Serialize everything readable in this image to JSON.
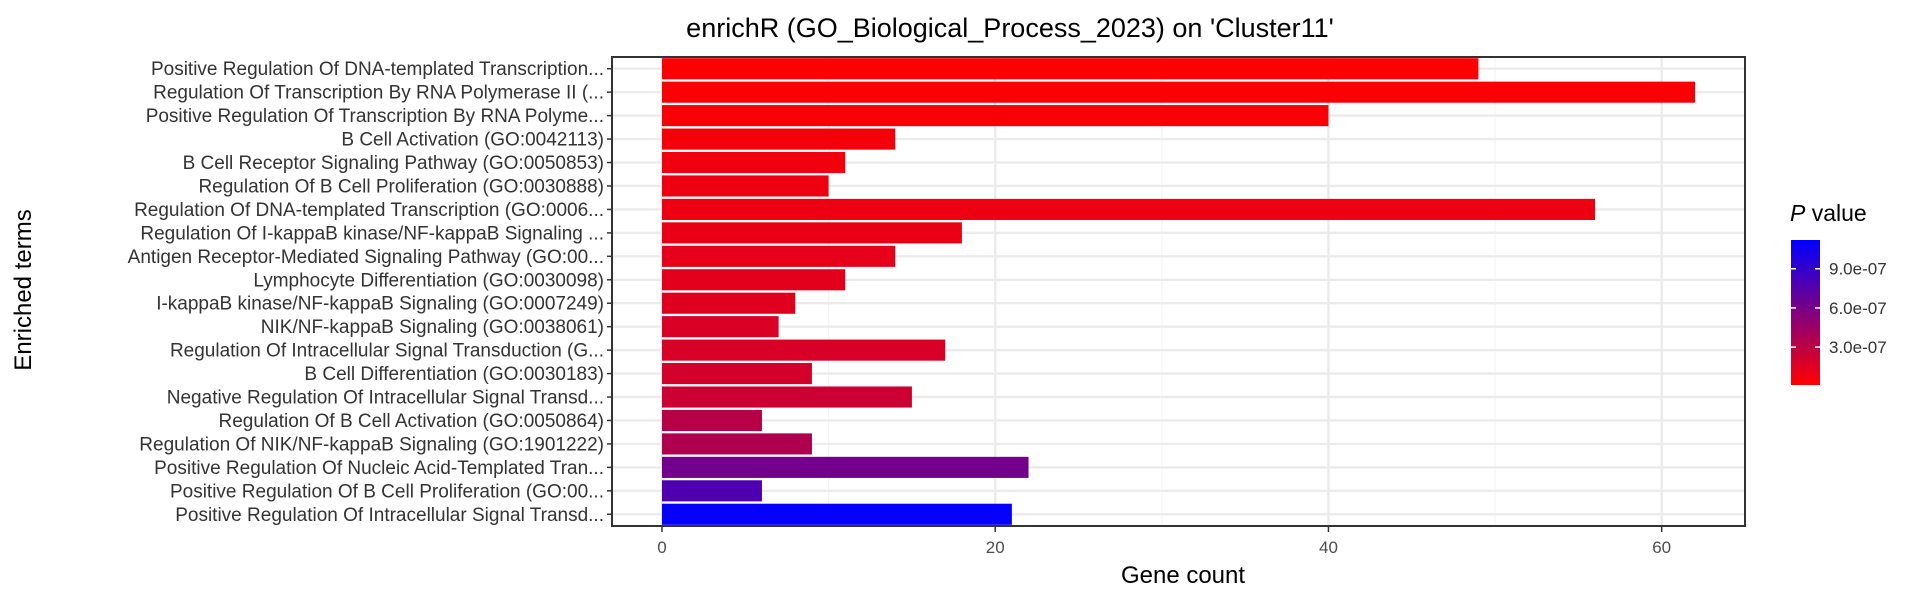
{
  "chart_data": {
    "type": "bar",
    "orientation": "horizontal",
    "title": "enrichR (GO_Biological_Process_2023) on 'Cluster11'",
    "xlabel": "Gene count",
    "ylabel": "Enriched terms",
    "xlim": [
      -3,
      65
    ],
    "xticks": [
      0,
      20,
      40,
      60
    ],
    "grid": true,
    "categories": [
      "Positive Regulation Of DNA-templated Transcription...",
      "Regulation Of Transcription By RNA Polymerase II (...",
      "Positive Regulation Of Transcription By RNA Polyme...",
      "B Cell Activation (GO:0042113)",
      "B Cell Receptor Signaling Pathway (GO:0050853)",
      "Regulation Of B Cell Proliferation (GO:0030888)",
      "Regulation Of DNA-templated Transcription (GO:0006...",
      "Regulation Of I-kappaB kinase/NF-kappaB Signaling ...",
      "Antigen Receptor-Mediated Signaling Pathway (GO:00...",
      "Lymphocyte Differentiation (GO:0030098)",
      "I-kappaB kinase/NF-kappaB Signaling (GO:0007249)",
      "NIK/NF-kappaB Signaling (GO:0038061)",
      "Regulation Of Intracellular Signal Transduction (G...",
      "B Cell Differentiation (GO:0030183)",
      "Negative Regulation Of Intracellular Signal Transd...",
      "Regulation Of B Cell Activation (GO:0050864)",
      "Regulation Of NIK/NF-kappaB Signaling (GO:1901222)",
      "Positive Regulation Of Nucleic Acid-Templated Tran...",
      "Positive Regulation Of B Cell Proliferation (GO:00...",
      "Positive Regulation Of Intracellular Signal Transd..."
    ],
    "values": [
      49,
      62,
      40,
      14,
      11,
      10,
      56,
      18,
      14,
      11,
      8,
      7,
      17,
      9,
      15,
      6,
      9,
      22,
      6,
      21
    ],
    "p_values": [
      2e-08,
      3e-08,
      4e-08,
      6e-08,
      7e-08,
      8e-08,
      9e-08,
      1e-07,
      1.2e-07,
      1.3e-07,
      1.5e-07,
      1.7e-07,
      1.8e-07,
      2e-07,
      2.3e-07,
      3.2e-07,
      3.6e-07,
      6.2e-07,
      7.8e-07,
      1.1e-06
    ],
    "legend": {
      "title_italic": "P",
      "title_rest": " value",
      "position": "right",
      "ticks": [
        {
          "label": "9.0e-07",
          "value": 9e-07
        },
        {
          "label": "6.0e-07",
          "value": 6e-07
        },
        {
          "label": "3.0e-07",
          "value": 3e-07
        }
      ],
      "range": [
        1e-08,
        1.12e-06
      ],
      "low_color": "#ff0000",
      "high_color": "#0000ff"
    },
    "colors": {
      "panel_border": "#333333",
      "grid_major": "#ebebeb",
      "grid_minor": "#f5f5f5",
      "tick_text": "#4d4d4d",
      "label_text": "#333333"
    }
  }
}
